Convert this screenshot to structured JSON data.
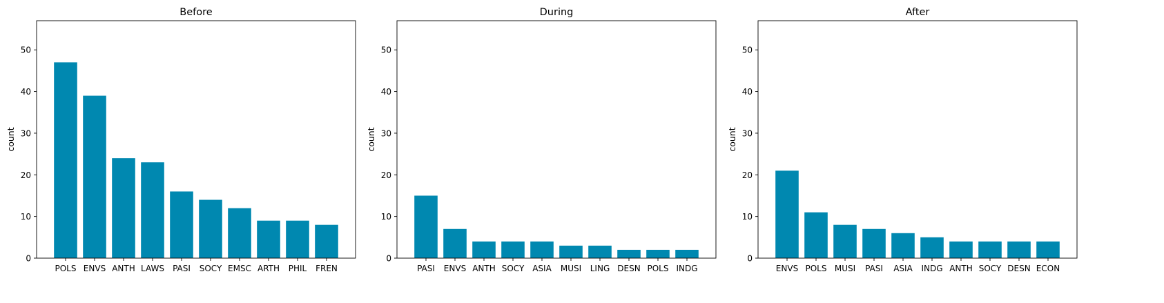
{
  "figure": {
    "bar_color": "#0088b0",
    "background": "#ffffff"
  },
  "chart_data": [
    {
      "type": "bar",
      "title": "Before",
      "xlabel": "",
      "ylabel": "count",
      "ylim": [
        0,
        57
      ],
      "yticks": [
        0,
        10,
        20,
        30,
        40,
        50
      ],
      "grid": false,
      "categories": [
        "POLS",
        "ENVS",
        "ANTH",
        "LAWS",
        "PASI",
        "SOCY",
        "EMSC",
        "ARTH",
        "PHIL",
        "FREN"
      ],
      "values": [
        47,
        39,
        24,
        23,
        16,
        14,
        12,
        9,
        9,
        8
      ]
    },
    {
      "type": "bar",
      "title": "During",
      "xlabel": "",
      "ylabel": "count",
      "ylim": [
        0,
        57
      ],
      "yticks": [
        0,
        10,
        20,
        30,
        40,
        50
      ],
      "grid": false,
      "categories": [
        "PASI",
        "ENVS",
        "ANTH",
        "SOCY",
        "ASIA",
        "MUSI",
        "LING",
        "DESN",
        "POLS",
        "INDG"
      ],
      "values": [
        15,
        7,
        4,
        4,
        4,
        3,
        3,
        2,
        2,
        2
      ]
    },
    {
      "type": "bar",
      "title": "After",
      "xlabel": "",
      "ylabel": "count",
      "ylim": [
        0,
        57
      ],
      "yticks": [
        0,
        10,
        20,
        30,
        40,
        50
      ],
      "grid": false,
      "categories": [
        "ENVS",
        "POLS",
        "MUSI",
        "PASI",
        "ASIA",
        "INDG",
        "ANTH",
        "SOCY",
        "DESN",
        "ECON"
      ],
      "values": [
        21,
        11,
        8,
        7,
        6,
        5,
        4,
        4,
        4,
        4
      ]
    }
  ]
}
